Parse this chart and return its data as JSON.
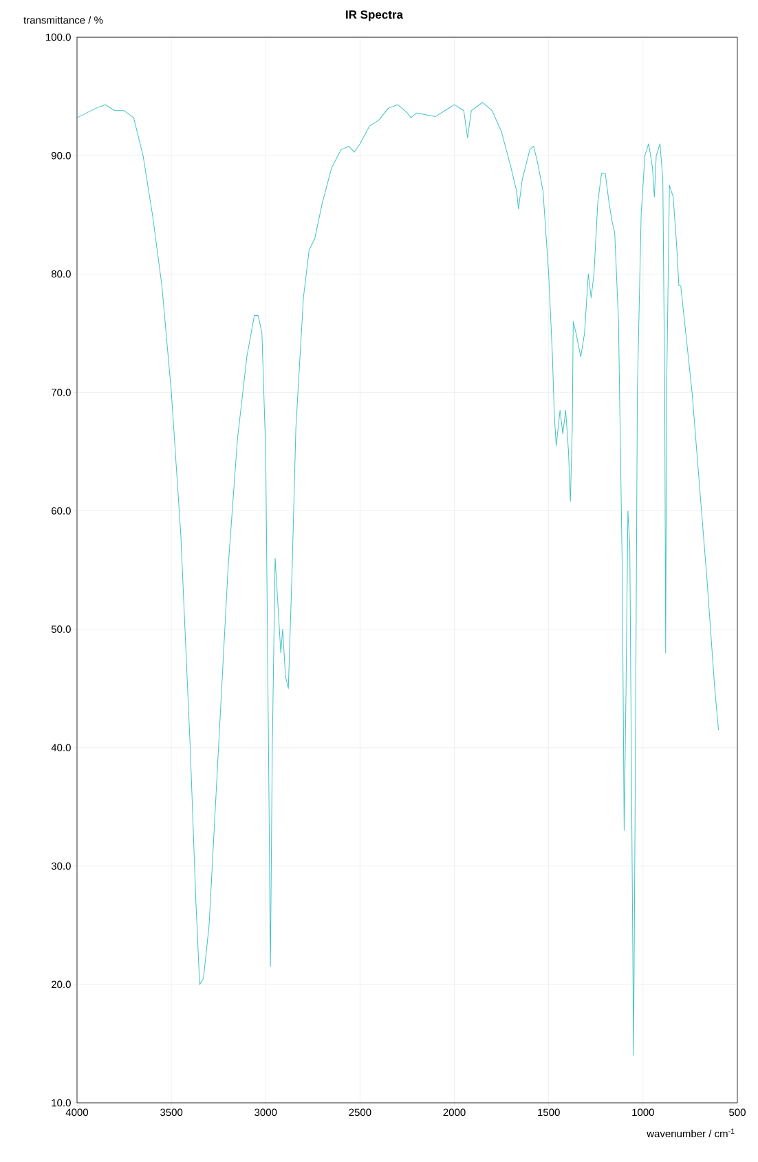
{
  "chart_data": {
    "type": "line",
    "title": "IR Spectra",
    "xlabel": "wavenumber / cm$^{-1}$",
    "ylabel": "transmittance / %",
    "x": [
      4000,
      3900,
      3850,
      3800,
      3750,
      3700,
      3650,
      3600,
      3550,
      3500,
      3450,
      3400,
      3370,
      3350,
      3330,
      3300,
      3250,
      3200,
      3150,
      3100,
      3060,
      3040,
      3020,
      3000,
      2985,
      2975,
      2965,
      2950,
      2935,
      2920,
      2910,
      2895,
      2880,
      2860,
      2840,
      2800,
      2770,
      2740,
      2700,
      2650,
      2600,
      2560,
      2530,
      2500,
      2450,
      2400,
      2350,
      2300,
      2250,
      2230,
      2200,
      2100,
      2050,
      2000,
      1950,
      1930,
      1910,
      1850,
      1800,
      1750,
      1700,
      1670,
      1660,
      1640,
      1600,
      1580,
      1560,
      1530,
      1500,
      1480,
      1470,
      1460,
      1440,
      1425,
      1410,
      1395,
      1385,
      1375,
      1370,
      1355,
      1330,
      1310,
      1290,
      1275,
      1260,
      1240,
      1220,
      1200,
      1180,
      1165,
      1150,
      1130,
      1110,
      1100,
      1090,
      1080,
      1070,
      1060,
      1050,
      1040,
      1030,
      1010,
      990,
      970,
      950,
      940,
      930,
      910,
      895,
      885,
      880,
      875,
      860,
      840,
      820,
      810,
      800,
      780,
      740,
      700,
      660,
      620,
      600
    ],
    "series": [
      {
        "color": "#40c4c4",
        "values": [
          93.2,
          94.0,
          94.3,
          93.8,
          93.8,
          93.2,
          90,
          85,
          79,
          70,
          58,
          40,
          27,
          20,
          20.5,
          25,
          40,
          55,
          66,
          73,
          76.5,
          76.5,
          75,
          65,
          40,
          21.5,
          40,
          56,
          52,
          48,
          50,
          46,
          45,
          55,
          67,
          78,
          82,
          83,
          86,
          89,
          90.5,
          90.8,
          90.3,
          91,
          92.5,
          93,
          94,
          94.3,
          93.6,
          93.2,
          93.6,
          93.3,
          93.8,
          94.3,
          93.8,
          91.5,
          93.8,
          94.5,
          93.8,
          92,
          89,
          87,
          85.5,
          88,
          90.5,
          90.8,
          89.5,
          87,
          80,
          73,
          68,
          65.5,
          68.5,
          66.5,
          68.5,
          65,
          60.8,
          67,
          76,
          75,
          73,
          75,
          80,
          78,
          80,
          86,
          88.5,
          88.5,
          86,
          84.5,
          83.5,
          76,
          55,
          33,
          45,
          60,
          57,
          35,
          14,
          40,
          70,
          85,
          90,
          91,
          89,
          86.5,
          90,
          91,
          88,
          70,
          48,
          70,
          87.5,
          86.5,
          82,
          79,
          79,
          76,
          70,
          62,
          54,
          45,
          41.5
        ]
      }
    ],
    "xlim": [
      4000,
      500
    ],
    "xticks": [
      4000,
      3500,
      3000,
      2500,
      2000,
      1500,
      1000,
      500
    ],
    "ylim": [
      10,
      100
    ],
    "yticks": [
      {
        "value": 10,
        "label": "10.0"
      },
      {
        "value": 20,
        "label": "20.0"
      },
      {
        "value": 30,
        "label": "30.0"
      },
      {
        "value": 40,
        "label": "40.0"
      },
      {
        "value": 50,
        "label": "50.0"
      },
      {
        "value": 60,
        "label": "60.0"
      },
      {
        "value": 70,
        "label": "70.0"
      },
      {
        "value": 80,
        "label": "80.0"
      },
      {
        "value": 90,
        "label": "90.0"
      },
      {
        "value": 100,
        "label": "100.0"
      }
    ],
    "grid": true,
    "marker": "none",
    "line_style": "solid"
  }
}
